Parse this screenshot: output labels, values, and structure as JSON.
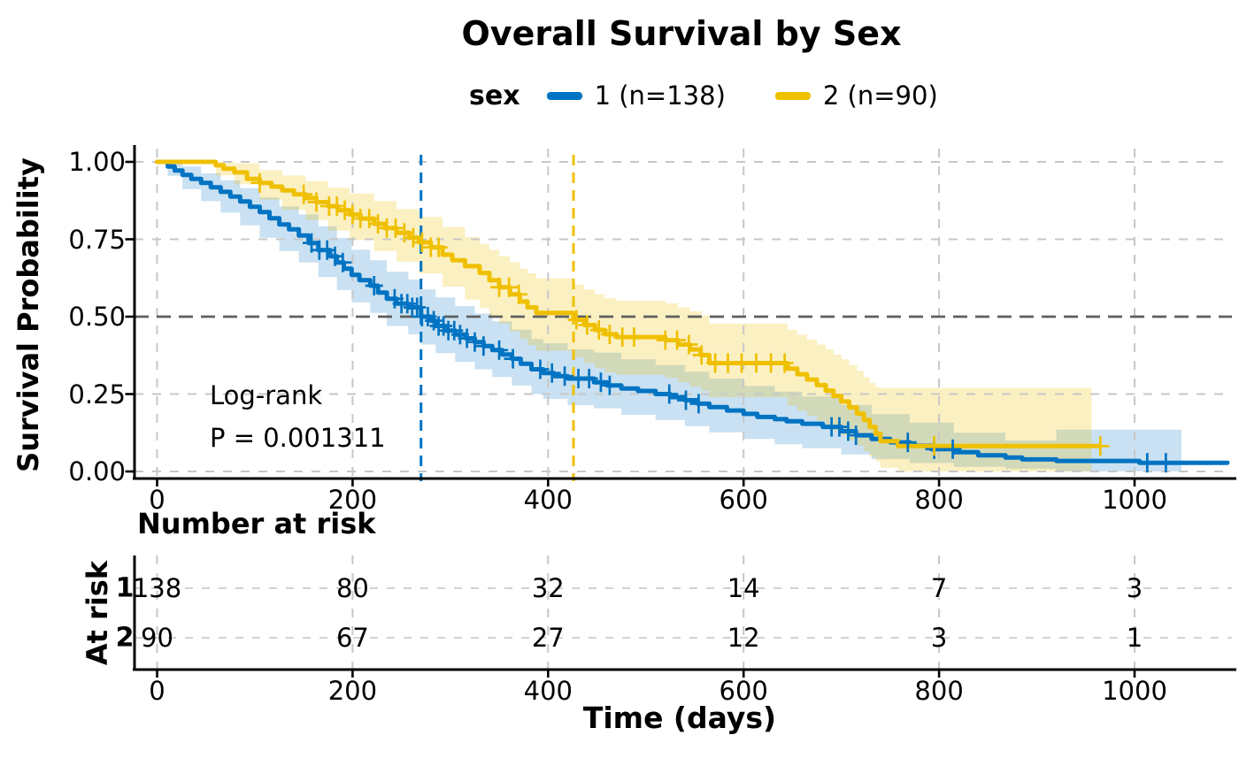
{
  "title": "Overall Survival by Sex",
  "legend": {
    "group_label": "sex",
    "items": [
      {
        "label": "1 (n=138)",
        "color": "#0073C2"
      },
      {
        "label": "2 (n=90)",
        "color": "#EFC000"
      }
    ]
  },
  "axes": {
    "y_label": "Survival Probability",
    "x_label": "Time (days)",
    "y_ticks": [
      "1.00",
      "0.75",
      "0.50",
      "0.25",
      "0.00"
    ],
    "x_ticks": [
      "0",
      "200",
      "400",
      "600",
      "800",
      "1000"
    ]
  },
  "annotation": {
    "line1": "Log-rank",
    "line2": "P = 0.001311"
  },
  "risk_table": {
    "title": "Number at risk",
    "axis_label": "At risk",
    "rows": [
      {
        "label": "1",
        "values": [
          "138",
          "80",
          "32",
          "14",
          "7",
          "3"
        ]
      },
      {
        "label": "2",
        "values": [
          "90",
          "67",
          "27",
          "12",
          "3",
          "1"
        ]
      }
    ]
  },
  "chart_data": {
    "type": "line",
    "variant": "kaplan-meier-step",
    "title": "Overall Survival by Sex",
    "xlabel": "Time (days)",
    "ylabel": "Survival Probability",
    "xlim": [
      0,
      1100
    ],
    "ylim": [
      0,
      1
    ],
    "x_ticks_values": [
      0,
      200,
      400,
      600,
      800,
      1000
    ],
    "y_ticks_values": [
      1.0,
      0.75,
      0.5,
      0.25,
      0.0
    ],
    "grid": true,
    "legend_position": "top",
    "median_reference_line_y": 0.5,
    "logrank_p": 0.001311,
    "colors": {
      "sex1": "#0073C2",
      "sex2": "#EFC000",
      "grid_light": "#c7c7c7",
      "grid_dark": "#5f5f5f"
    },
    "at_risk": {
      "times": [
        0,
        200,
        400,
        600,
        800,
        1000
      ],
      "sex1": [
        138,
        80,
        32,
        14,
        7,
        3
      ],
      "sex2": [
        90,
        67,
        27,
        12,
        3,
        1
      ]
    },
    "series": [
      {
        "name": "1 (n=138)",
        "color": "#0073C2",
        "median_days": 270,
        "points": [
          [
            0,
            1.0
          ],
          [
            11,
            0.985
          ],
          [
            18,
            0.972
          ],
          [
            26,
            0.958
          ],
          [
            35,
            0.945
          ],
          [
            45,
            0.932
          ],
          [
            55,
            0.918
          ],
          [
            65,
            0.903
          ],
          [
            75,
            0.888
          ],
          [
            85,
            0.872
          ],
          [
            95,
            0.855
          ],
          [
            105,
            0.838
          ],
          [
            115,
            0.818
          ],
          [
            125,
            0.798
          ],
          [
            135,
            0.782
          ],
          [
            145,
            0.762
          ],
          [
            155,
            0.738
          ],
          [
            165,
            0.715
          ],
          [
            177,
            0.695
          ],
          [
            184,
            0.675
          ],
          [
            191,
            0.655
          ],
          [
            199,
            0.635
          ],
          [
            207,
            0.618
          ],
          [
            218,
            0.6
          ],
          [
            226,
            0.578
          ],
          [
            235,
            0.558
          ],
          [
            245,
            0.542
          ],
          [
            257,
            0.53
          ],
          [
            270,
            0.5
          ],
          [
            280,
            0.487
          ],
          [
            285,
            0.47
          ],
          [
            295,
            0.455
          ],
          [
            305,
            0.442
          ],
          [
            316,
            0.43
          ],
          [
            325,
            0.418
          ],
          [
            334,
            0.405
          ],
          [
            343,
            0.392
          ],
          [
            353,
            0.378
          ],
          [
            363,
            0.364
          ],
          [
            372,
            0.348
          ],
          [
            383,
            0.33
          ],
          [
            395,
            0.318
          ],
          [
            406,
            0.308
          ],
          [
            420,
            0.3
          ],
          [
            447,
            0.288
          ],
          [
            460,
            0.278
          ],
          [
            475,
            0.268
          ],
          [
            492,
            0.26
          ],
          [
            510,
            0.25
          ],
          [
            525,
            0.24
          ],
          [
            540,
            0.23
          ],
          [
            553,
            0.219
          ],
          [
            565,
            0.208
          ],
          [
            583,
            0.197
          ],
          [
            600,
            0.186
          ],
          [
            614,
            0.176
          ],
          [
            632,
            0.169
          ],
          [
            644,
            0.162
          ],
          [
            660,
            0.154
          ],
          [
            681,
            0.144
          ],
          [
            700,
            0.13
          ],
          [
            715,
            0.117
          ],
          [
            731,
            0.105
          ],
          [
            750,
            0.094
          ],
          [
            770,
            0.083
          ],
          [
            792,
            0.072
          ],
          [
            815,
            0.062
          ],
          [
            840,
            0.052
          ],
          [
            868,
            0.045
          ],
          [
            885,
            0.039
          ],
          [
            920,
            0.034
          ],
          [
            1005,
            0.028
          ],
          [
            1095,
            0.028
          ]
        ],
        "band": [
          [
            0,
            1,
            1
          ],
          [
            11,
            0.955,
            1
          ],
          [
            26,
            0.912,
            0.985
          ],
          [
            45,
            0.873,
            0.963
          ],
          [
            65,
            0.836,
            0.94
          ],
          [
            85,
            0.795,
            0.915
          ],
          [
            105,
            0.755,
            0.885
          ],
          [
            125,
            0.712,
            0.856
          ],
          [
            145,
            0.675,
            0.83
          ],
          [
            165,
            0.628,
            0.792
          ],
          [
            184,
            0.586,
            0.754
          ],
          [
            199,
            0.546,
            0.716
          ],
          [
            218,
            0.512,
            0.682
          ],
          [
            235,
            0.47,
            0.645
          ],
          [
            257,
            0.443,
            0.62
          ],
          [
            270,
            0.41,
            0.588
          ],
          [
            285,
            0.382,
            0.562
          ],
          [
            305,
            0.354,
            0.534
          ],
          [
            325,
            0.33,
            0.51
          ],
          [
            343,
            0.305,
            0.485
          ],
          [
            363,
            0.278,
            0.458
          ],
          [
            383,
            0.25,
            0.428
          ],
          [
            395,
            0.234,
            0.414
          ],
          [
            420,
            0.214,
            0.394
          ],
          [
            447,
            0.204,
            0.384
          ],
          [
            475,
            0.183,
            0.362
          ],
          [
            510,
            0.166,
            0.344
          ],
          [
            540,
            0.146,
            0.322
          ],
          [
            565,
            0.126,
            0.3
          ],
          [
            600,
            0.105,
            0.276
          ],
          [
            632,
            0.088,
            0.258
          ],
          [
            660,
            0.075,
            0.242
          ],
          [
            700,
            0.055,
            0.215
          ],
          [
            731,
            0.04,
            0.185
          ],
          [
            770,
            0.027,
            0.158
          ],
          [
            815,
            0.015,
            0.125
          ],
          [
            868,
            0.008,
            0.1
          ],
          [
            920,
            0.0,
            0.135
          ],
          [
            1048,
            0.0,
            0.135
          ]
        ],
        "censor_times": [
          158,
          166,
          174,
          182,
          190,
          222,
          243,
          250,
          256,
          261,
          266,
          271,
          277,
          283,
          288,
          293,
          298,
          304,
          310,
          317,
          325,
          334,
          350,
          364,
          392,
          404,
          417,
          431,
          442,
          454,
          463,
          524,
          541,
          554,
          690,
          698,
          707,
          715,
          768,
          795,
          814,
          1013,
          1032
        ]
      },
      {
        "name": "2 (n=90)",
        "color": "#EFC000",
        "median_days": 426,
        "points": [
          [
            0,
            1.0
          ],
          [
            60,
            0.989
          ],
          [
            68,
            0.978
          ],
          [
            79,
            0.966
          ],
          [
            92,
            0.945
          ],
          [
            105,
            0.932
          ],
          [
            117,
            0.92
          ],
          [
            128,
            0.908
          ],
          [
            140,
            0.895
          ],
          [
            152,
            0.883
          ],
          [
            163,
            0.87
          ],
          [
            175,
            0.857
          ],
          [
            185,
            0.844
          ],
          [
            197,
            0.83
          ],
          [
            208,
            0.817
          ],
          [
            222,
            0.8
          ],
          [
            233,
            0.786
          ],
          [
            245,
            0.771
          ],
          [
            258,
            0.755
          ],
          [
            268,
            0.74
          ],
          [
            280,
            0.724
          ],
          [
            292,
            0.7
          ],
          [
            302,
            0.682
          ],
          [
            315,
            0.663
          ],
          [
            330,
            0.641
          ],
          [
            340,
            0.618
          ],
          [
            350,
            0.595
          ],
          [
            361,
            0.572
          ],
          [
            371,
            0.549
          ],
          [
            379,
            0.53
          ],
          [
            388,
            0.512
          ],
          [
            426,
            0.49
          ],
          [
            437,
            0.473
          ],
          [
            448,
            0.457
          ],
          [
            458,
            0.443
          ],
          [
            470,
            0.434
          ],
          [
            520,
            0.424
          ],
          [
            533,
            0.41
          ],
          [
            545,
            0.394
          ],
          [
            556,
            0.376
          ],
          [
            565,
            0.35
          ],
          [
            645,
            0.332
          ],
          [
            655,
            0.314
          ],
          [
            665,
            0.297
          ],
          [
            675,
            0.279
          ],
          [
            684,
            0.261
          ],
          [
            692,
            0.244
          ],
          [
            700,
            0.226
          ],
          [
            708,
            0.207
          ],
          [
            716,
            0.187
          ],
          [
            723,
            0.166
          ],
          [
            729,
            0.144
          ],
          [
            735,
            0.122
          ],
          [
            740,
            0.098
          ],
          [
            758,
            0.082
          ],
          [
            965,
            0.082
          ]
        ],
        "band": [
          [
            0,
            1,
            1
          ],
          [
            60,
            0.956,
            1
          ],
          [
            79,
            0.928,
            0.995
          ],
          [
            105,
            0.878,
            0.973
          ],
          [
            128,
            0.845,
            0.956
          ],
          [
            152,
            0.812,
            0.938
          ],
          [
            175,
            0.778,
            0.917
          ],
          [
            197,
            0.748,
            0.898
          ],
          [
            222,
            0.712,
            0.873
          ],
          [
            245,
            0.678,
            0.848
          ],
          [
            268,
            0.64,
            0.822
          ],
          [
            292,
            0.597,
            0.79
          ],
          [
            315,
            0.555,
            0.757
          ],
          [
            330,
            0.528,
            0.735
          ],
          [
            340,
            0.503,
            0.716
          ],
          [
            350,
            0.478,
            0.695
          ],
          [
            361,
            0.452,
            0.676
          ],
          [
            371,
            0.428,
            0.655
          ],
          [
            379,
            0.408,
            0.64
          ],
          [
            388,
            0.39,
            0.624
          ],
          [
            426,
            0.368,
            0.604
          ],
          [
            437,
            0.35,
            0.588
          ],
          [
            448,
            0.334,
            0.573
          ],
          [
            458,
            0.32,
            0.56
          ],
          [
            470,
            0.312,
            0.552
          ],
          [
            520,
            0.302,
            0.543
          ],
          [
            533,
            0.288,
            0.53
          ],
          [
            545,
            0.274,
            0.517
          ],
          [
            557,
            0.26,
            0.504
          ],
          [
            565,
            0.24,
            0.478
          ],
          [
            645,
            0.212,
            0.457
          ],
          [
            655,
            0.196,
            0.442
          ],
          [
            665,
            0.18,
            0.426
          ],
          [
            675,
            0.163,
            0.41
          ],
          [
            684,
            0.147,
            0.394
          ],
          [
            692,
            0.132,
            0.378
          ],
          [
            700,
            0.116,
            0.362
          ],
          [
            708,
            0.1,
            0.344
          ],
          [
            716,
            0.083,
            0.325
          ],
          [
            723,
            0.065,
            0.305
          ],
          [
            729,
            0.048,
            0.285
          ],
          [
            735,
            0.032,
            0.272
          ],
          [
            740,
            0.012,
            0.27
          ],
          [
            758,
            0.0,
            0.27
          ],
          [
            956,
            0.0,
            0.27
          ]
        ],
        "censor_times": [
          105,
          150,
          163,
          176,
          184,
          192,
          200,
          208,
          217,
          226,
          235,
          244,
          253,
          262,
          271,
          280,
          288,
          350,
          360,
          370,
          429,
          440,
          452,
          463,
          476,
          488,
          520,
          532,
          544,
          557,
          571,
          584,
          598,
          613,
          628,
          642,
          795,
          965
        ]
      }
    ]
  }
}
